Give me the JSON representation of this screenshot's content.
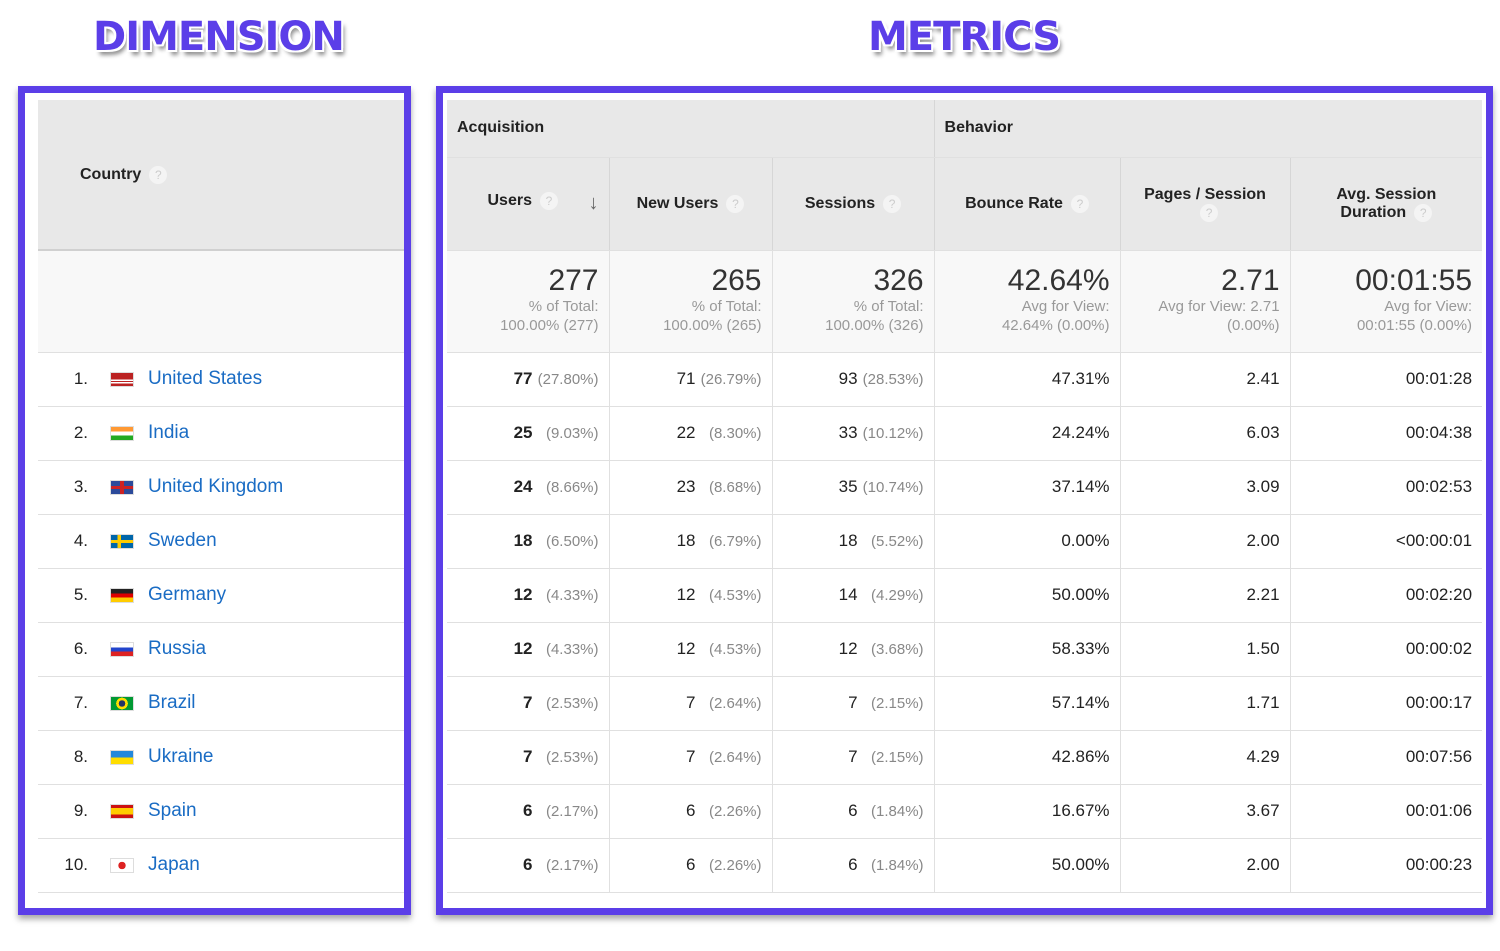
{
  "labels": {
    "dimension": "DIMENSION",
    "metrics": "METRICS"
  },
  "colors": {
    "highlight": "#5b3ee8",
    "link": "#1a6cc4"
  },
  "dimension": {
    "header": "Country",
    "help": "?"
  },
  "groups": {
    "acquisition": "Acquisition",
    "behavior": "Behavior"
  },
  "columns": [
    "Users",
    "New Users",
    "Sessions",
    "Bounce Rate",
    "Pages / Session",
    "Avg. Session Duration"
  ],
  "sort": {
    "column": "Users",
    "direction": "descending"
  },
  "totals": [
    {
      "value": "277",
      "l1": "% of Total:",
      "l2": "100.00% (277)"
    },
    {
      "value": "265",
      "l1": "% of Total:",
      "l2": "100.00% (265)"
    },
    {
      "value": "326",
      "l1": "% of Total:",
      "l2": "100.00% (326)"
    },
    {
      "value": "42.64%",
      "l1": "Avg for View:",
      "l2": "42.64% (0.00%)"
    },
    {
      "value": "2.71",
      "l1": "Avg for View: 2.71",
      "l2": "(0.00%)"
    },
    {
      "value": "00:01:55",
      "l1": "Avg for View:",
      "l2": "00:01:55 (0.00%)"
    }
  ],
  "rows": [
    {
      "rank": "1.",
      "country": "United States",
      "flag": "us",
      "users": "77",
      "users_pct": "(27.80%)",
      "new": "71",
      "new_pct": "(26.79%)",
      "sessions": "93",
      "sessions_pct": "(28.53%)",
      "bounce": "47.31%",
      "pages": "2.41",
      "duration": "00:01:28"
    },
    {
      "rank": "2.",
      "country": "India",
      "flag": "in",
      "users": "25",
      "users_pct": "(9.03%)",
      "new": "22",
      "new_pct": "(8.30%)",
      "sessions": "33",
      "sessions_pct": "(10.12%)",
      "bounce": "24.24%",
      "pages": "6.03",
      "duration": "00:04:38"
    },
    {
      "rank": "3.",
      "country": "United Kingdom",
      "flag": "gb",
      "users": "24",
      "users_pct": "(8.66%)",
      "new": "23",
      "new_pct": "(8.68%)",
      "sessions": "35",
      "sessions_pct": "(10.74%)",
      "bounce": "37.14%",
      "pages": "3.09",
      "duration": "00:02:53"
    },
    {
      "rank": "4.",
      "country": "Sweden",
      "flag": "se",
      "users": "18",
      "users_pct": "(6.50%)",
      "new": "18",
      "new_pct": "(6.79%)",
      "sessions": "18",
      "sessions_pct": "(5.52%)",
      "bounce": "0.00%",
      "pages": "2.00",
      "duration": "<00:00:01"
    },
    {
      "rank": "5.",
      "country": "Germany",
      "flag": "de",
      "users": "12",
      "users_pct": "(4.33%)",
      "new": "12",
      "new_pct": "(4.53%)",
      "sessions": "14",
      "sessions_pct": "(4.29%)",
      "bounce": "50.00%",
      "pages": "2.21",
      "duration": "00:02:20"
    },
    {
      "rank": "6.",
      "country": "Russia",
      "flag": "ru",
      "users": "12",
      "users_pct": "(4.33%)",
      "new": "12",
      "new_pct": "(4.53%)",
      "sessions": "12",
      "sessions_pct": "(3.68%)",
      "bounce": "58.33%",
      "pages": "1.50",
      "duration": "00:00:02"
    },
    {
      "rank": "7.",
      "country": "Brazil",
      "flag": "br",
      "users": "7",
      "users_pct": "(2.53%)",
      "new": "7",
      "new_pct": "(2.64%)",
      "sessions": "7",
      "sessions_pct": "(2.15%)",
      "bounce": "57.14%",
      "pages": "1.71",
      "duration": "00:00:17"
    },
    {
      "rank": "8.",
      "country": "Ukraine",
      "flag": "ua",
      "users": "7",
      "users_pct": "(2.53%)",
      "new": "7",
      "new_pct": "(2.64%)",
      "sessions": "7",
      "sessions_pct": "(2.15%)",
      "bounce": "42.86%",
      "pages": "4.29",
      "duration": "00:07:56"
    },
    {
      "rank": "9.",
      "country": "Spain",
      "flag": "es",
      "users": "6",
      "users_pct": "(2.17%)",
      "new": "6",
      "new_pct": "(2.26%)",
      "sessions": "6",
      "sessions_pct": "(1.84%)",
      "bounce": "16.67%",
      "pages": "3.67",
      "duration": "00:01:06"
    },
    {
      "rank": "10.",
      "country": "Japan",
      "flag": "jp",
      "users": "6",
      "users_pct": "(2.17%)",
      "new": "6",
      "new_pct": "(2.26%)",
      "sessions": "6",
      "sessions_pct": "(1.84%)",
      "bounce": "50.00%",
      "pages": "2.00",
      "duration": "00:00:23"
    }
  ]
}
